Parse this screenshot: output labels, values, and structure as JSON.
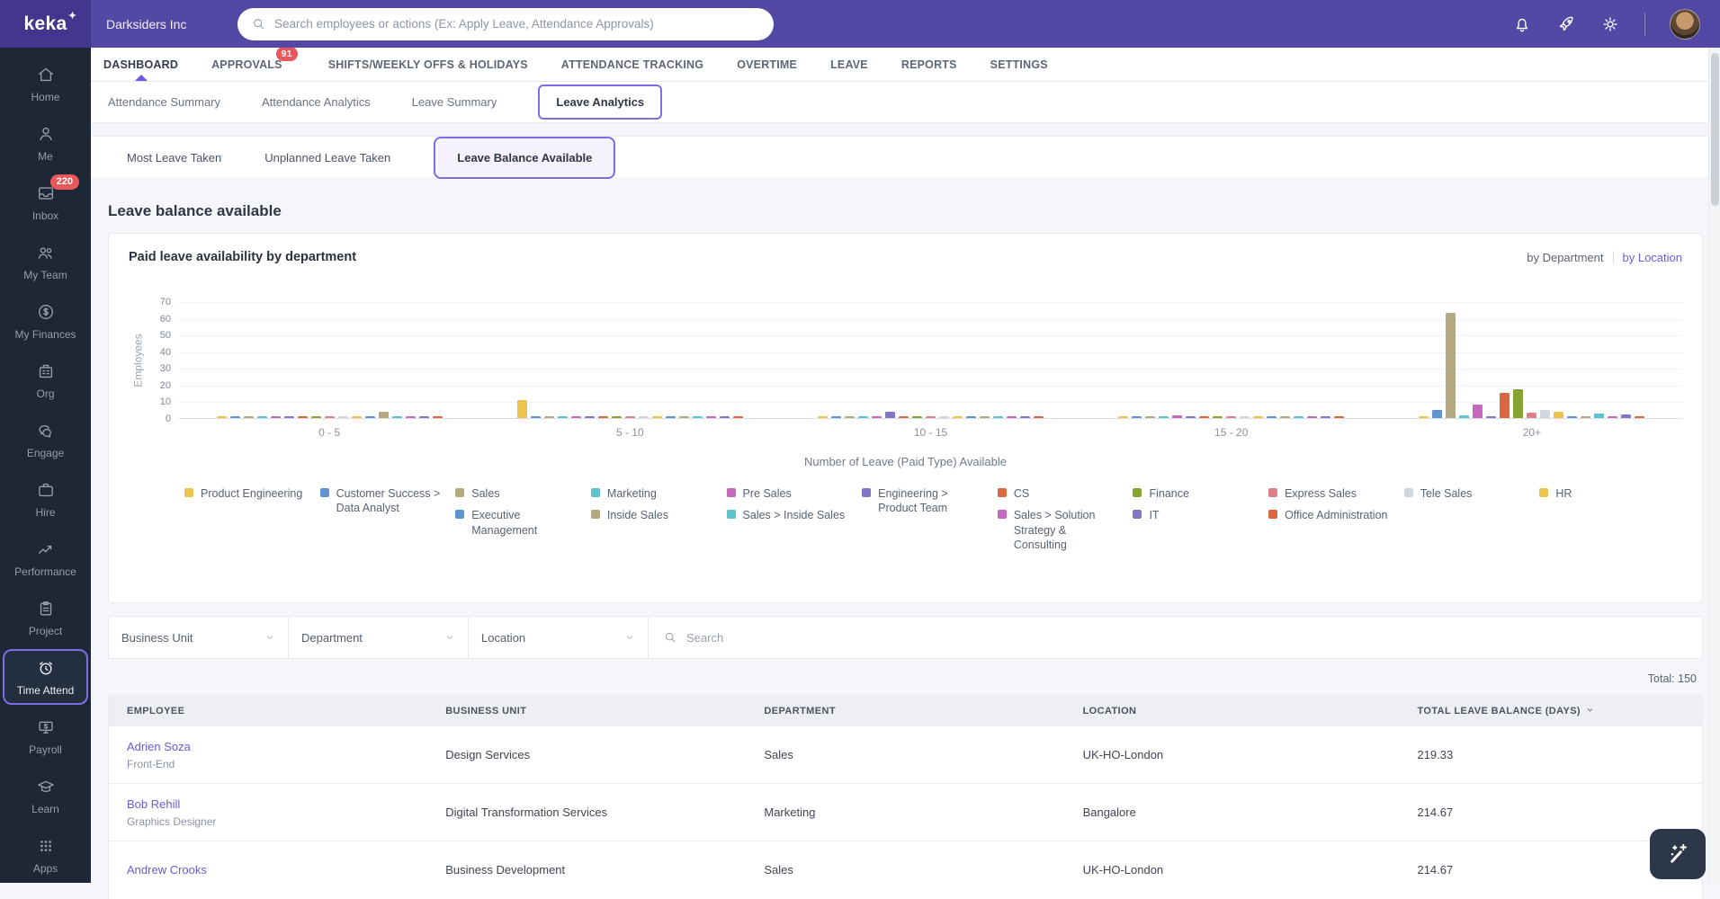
{
  "brand": {
    "logo_text": "keka",
    "logo_mark": "✦"
  },
  "topbar": {
    "company": "Darksiders Inc",
    "search_placeholder": "Search employees or actions (Ex: Apply Leave, Attendance Approvals)"
  },
  "sidebar": {
    "items": [
      {
        "label": "Home",
        "icon": "home"
      },
      {
        "label": "Me",
        "icon": "me"
      },
      {
        "label": "Inbox",
        "icon": "inbox",
        "badge": "220"
      },
      {
        "label": "My Team",
        "icon": "team"
      },
      {
        "label": "My Finances",
        "icon": "finances"
      },
      {
        "label": "Org",
        "icon": "org"
      },
      {
        "label": "Engage",
        "icon": "engage"
      },
      {
        "label": "Hire",
        "icon": "hire"
      },
      {
        "label": "Performance",
        "icon": "performance"
      },
      {
        "label": "Project",
        "icon": "project"
      },
      {
        "label": "Time Attend",
        "icon": "time",
        "active": true
      },
      {
        "label": "Payroll",
        "icon": "payroll"
      },
      {
        "label": "Learn",
        "icon": "learn"
      },
      {
        "label": "Apps",
        "icon": "apps"
      }
    ]
  },
  "nav": {
    "items": [
      {
        "label": "DASHBOARD",
        "active": true
      },
      {
        "label": "APPROVALS",
        "badge": "91"
      },
      {
        "label": "SHIFTS/WEEKLY OFFS & HOLIDAYS"
      },
      {
        "label": "ATTENDANCE TRACKING"
      },
      {
        "label": "OVERTIME"
      },
      {
        "label": "LEAVE"
      },
      {
        "label": "REPORTS"
      },
      {
        "label": "SETTINGS"
      }
    ]
  },
  "subtabs": {
    "items": [
      {
        "label": "Attendance Summary"
      },
      {
        "label": "Attendance Analytics"
      },
      {
        "label": "Leave Summary"
      },
      {
        "label": "Leave Analytics",
        "active": true
      }
    ]
  },
  "view_pills": {
    "items": [
      {
        "label": "Most Leave Taken"
      },
      {
        "label": "Unplanned Leave Taken"
      },
      {
        "label": "Leave Balance Available",
        "active": true
      }
    ]
  },
  "page": {
    "heading": "Leave balance available"
  },
  "chart_card": {
    "title": "Paid leave availability by department",
    "toggle": {
      "department": "by Department",
      "location": "by Location"
    }
  },
  "chart_data": {
    "type": "bar",
    "title": "Paid leave availability by department",
    "xlabel": "Number of Leave (Paid Type) Available",
    "ylabel": "Employees",
    "ylim": [
      0,
      70
    ],
    "yticks": [
      0,
      10,
      20,
      30,
      40,
      50,
      60,
      70
    ],
    "grid": true,
    "legend_position": "bottom",
    "categories": [
      "0 - 5",
      "5 - 10",
      "10 - 15",
      "15 - 20",
      "20+"
    ],
    "series": [
      {
        "name": "Product Engineering",
        "color": "#ECC44D",
        "values": [
          0.5,
          11,
          0.5,
          0.5,
          0.5
        ]
      },
      {
        "name": "Customer Success > Data Analyst",
        "color": "#6193CE",
        "values": [
          1,
          0.5,
          1,
          0.5,
          5
        ]
      },
      {
        "name": "Sales",
        "color": "#B5AA7F",
        "values": [
          0.5,
          0.5,
          0.5,
          0.5,
          63
        ]
      },
      {
        "name": "Marketing",
        "color": "#5FC2CE",
        "values": [
          0.5,
          1,
          0.5,
          0.5,
          1.5
        ]
      },
      {
        "name": "Pre Sales",
        "color": "#C568BE",
        "values": [
          1,
          0.5,
          0.5,
          1.5,
          8
        ]
      },
      {
        "name": "Engineering > Product Team",
        "color": "#8376C5",
        "values": [
          0.5,
          0.5,
          3.5,
          0.5,
          1
        ]
      },
      {
        "name": "CS",
        "color": "#D96841",
        "values": [
          1,
          0.5,
          1,
          0.5,
          15
        ]
      },
      {
        "name": "Finance",
        "color": "#86A431",
        "values": [
          1,
          0.5,
          1,
          0.5,
          17
        ]
      },
      {
        "name": "Express Sales",
        "color": "#DF7F86",
        "values": [
          0.5,
          0.5,
          0.5,
          0.5,
          3
        ]
      },
      {
        "name": "Tele Sales",
        "color": "#D2D6DD",
        "values": [
          0.5,
          0.5,
          0.5,
          0.5,
          5
        ]
      },
      {
        "name": "HR",
        "color": "#ECC44D",
        "values": [
          0.5,
          1,
          0.5,
          0.5,
          3.5
        ]
      },
      {
        "name": "Executive Management",
        "color": "#6193CE",
        "values": [
          0.5,
          0.5,
          0.5,
          0.5,
          0.5
        ]
      },
      {
        "name": "Inside Sales",
        "color": "#B5AA7F",
        "values": [
          3.5,
          0.5,
          0.5,
          0.5,
          0.5
        ]
      },
      {
        "name": "Sales > Inside Sales",
        "color": "#5FC2CE",
        "values": [
          0.5,
          1,
          0.5,
          0.5,
          2.5
        ]
      },
      {
        "name": "Sales > Solution Strategy & Consulting",
        "color": "#C568BE",
        "values": [
          1,
          0.5,
          1,
          1,
          1
        ]
      },
      {
        "name": "IT",
        "color": "#8376C5",
        "values": [
          0.5,
          0.5,
          1,
          1,
          2
        ]
      },
      {
        "name": "Office Administration",
        "color": "#D96841",
        "values": [
          0.5,
          0.5,
          0.5,
          0.5,
          1
        ]
      }
    ],
    "legend_columns": [
      [
        0
      ],
      [
        1
      ],
      [
        2,
        11
      ],
      [
        3,
        12
      ],
      [
        4,
        13
      ],
      [
        5
      ],
      [
        6,
        14
      ],
      [
        7,
        15
      ],
      [
        8,
        16
      ],
      [
        9
      ],
      [
        10
      ]
    ]
  },
  "filters": {
    "selects": [
      "Business Unit",
      "Department",
      "Location"
    ],
    "search_placeholder": "Search"
  },
  "table": {
    "total": "Total: 150",
    "columns": [
      "EMPLOYEE",
      "BUSINESS UNIT",
      "DEPARTMENT",
      "LOCATION",
      "TOTAL LEAVE BALANCE (DAYS)"
    ],
    "rows": [
      {
        "name": "Adrien Soza",
        "role": "Front-End",
        "business_unit": "Design Services",
        "department": "Sales",
        "location": "UK-HO-London",
        "balance": "219.33"
      },
      {
        "name": "Bob Rehill",
        "role": "Graphics Designer",
        "business_unit": "Digital Transformation Services",
        "department": "Marketing",
        "location": "Bangalore",
        "balance": "214.67"
      },
      {
        "name": "Andrew Crooks",
        "role": "",
        "business_unit": "Business Development",
        "department": "Sales",
        "location": "UK-HO-London",
        "balance": "214.67"
      }
    ]
  },
  "colors": {
    "accent": "#7C6CE6",
    "header": "#5348A4",
    "badge": "#E8575C",
    "link": "#6A5BD0"
  }
}
